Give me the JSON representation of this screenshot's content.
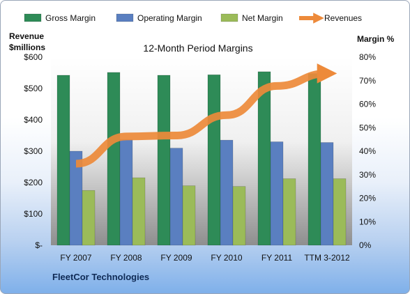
{
  "chart_data": {
    "type": "bar",
    "title": "12-Month Period Margins",
    "footer": "FleetCor Technologies",
    "categories": [
      "FY 2007",
      "FY 2008",
      "FY 2009",
      "FY 2010",
      "FY 2011",
      "TTM 3-2012"
    ],
    "left_axis": {
      "title_line1": "Revenue",
      "title_line2": "$millions",
      "ticks": [
        0,
        100,
        200,
        300,
        400,
        500,
        600
      ],
      "tick_labels": [
        "$-",
        "$100",
        "$200",
        "$300",
        "$400",
        "$500",
        "$600"
      ],
      "ylim": [
        0,
        600
      ]
    },
    "right_axis": {
      "title": "Margin %",
      "ticks": [
        0,
        10,
        20,
        30,
        40,
        50,
        60,
        70,
        80
      ],
      "tick_labels": [
        "0%",
        "10%",
        "20%",
        "30%",
        "40%",
        "50%",
        "60%",
        "70%",
        "80%"
      ],
      "ylim": [
        0,
        80
      ]
    },
    "series": [
      {
        "name": "Gross Margin",
        "type": "bar",
        "axis": "right",
        "color": "#2e8b57",
        "values": [
          72.3,
          73.5,
          72.3,
          72.5,
          73.8,
          73.0
        ]
      },
      {
        "name": "Operating Margin",
        "type": "bar",
        "axis": "right",
        "color": "#5a7fc0",
        "values": [
          40.0,
          45.0,
          41.3,
          44.7,
          44.0,
          43.7
        ]
      },
      {
        "name": "Net Margin",
        "type": "bar",
        "axis": "right",
        "color": "#9bbb59",
        "values": [
          23.3,
          28.7,
          25.3,
          25.0,
          28.3,
          28.3
        ]
      },
      {
        "name": "Revenues",
        "type": "line",
        "axis": "left",
        "color": "#ed8a3a",
        "values": [
          260,
          347,
          350,
          415,
          508,
          548
        ]
      }
    ],
    "legend_position": "top",
    "grid": false
  }
}
